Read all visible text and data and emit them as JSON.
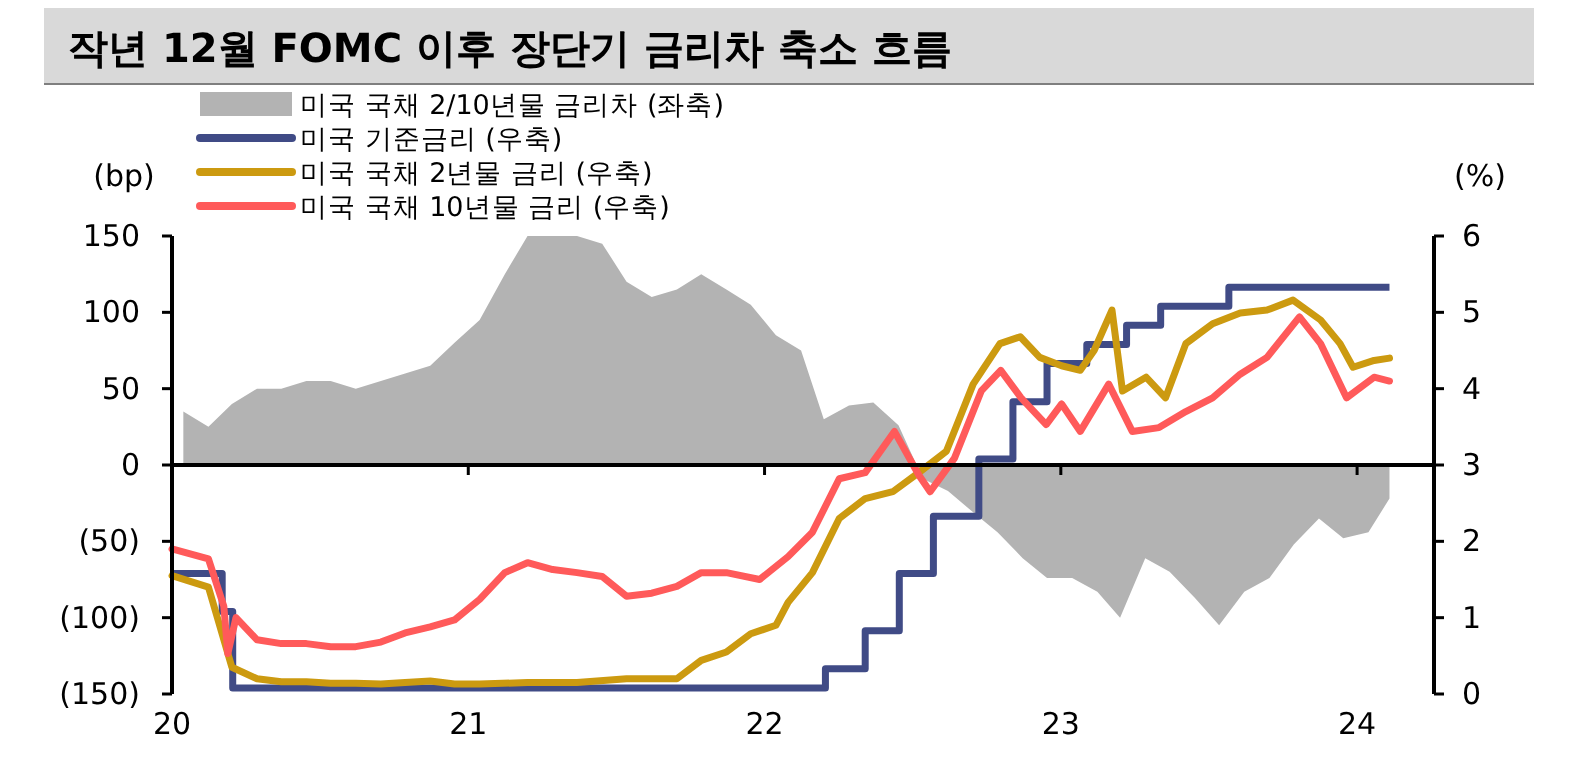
{
  "chart_data": {
    "type": "line",
    "title": "작년 12월 FOMC 이후 장단기 금리차 축소 흐름",
    "ylabel": "(bp)",
    "y2label": "(%)",
    "legend": "top left",
    "xlim": [
      "2020-01-01",
      "2024-04-05"
    ],
    "xticks": [
      {
        "value": "2020-01-01",
        "label": "20"
      },
      {
        "value": "2021-01-01",
        "label": "21"
      },
      {
        "value": "2022-01-01",
        "label": "22"
      },
      {
        "value": "2023-01-01",
        "label": "23"
      },
      {
        "value": "2024-01-01",
        "label": "24"
      }
    ],
    "ylim": [
      -150,
      150
    ],
    "yticks": [
      {
        "value": -150,
        "label": "(150)"
      },
      {
        "value": -100,
        "label": "(100)"
      },
      {
        "value": -50,
        "label": "(50)"
      },
      0,
      50,
      100,
      150
    ],
    "y2lim": [
      0,
      6
    ],
    "y2ticks": [
      0,
      1,
      2,
      3,
      4,
      5,
      6
    ],
    "series": [
      {
        "name": "미국 국채 2/10년물 금리차 (좌축)",
        "type": "area",
        "color": "#b3b3b3",
        "x": [
          "2020-01-15",
          "2020-02-15",
          "2020-03-15",
          "2020-04-15",
          "2020-05-15",
          "2020-06-15",
          "2020-07-15",
          "2020-08-15",
          "2020-09-15",
          "2020-10-15",
          "2020-11-15",
          "2020-12-15",
          "2021-01-15",
          "2021-02-15",
          "2021-03-15",
          "2021-04-15",
          "2021-05-15",
          "2021-06-15",
          "2021-07-15",
          "2021-08-15",
          "2021-09-15",
          "2021-10-15",
          "2021-11-15",
          "2021-12-15",
          "2022-01-15",
          "2022-02-15",
          "2022-03-15",
          "2022-04-15",
          "2022-05-15",
          "2022-06-15",
          "2022-07-15",
          "2022-08-15",
          "2022-09-15",
          "2022-10-15",
          "2022-11-15",
          "2022-12-15",
          "2023-01-15",
          "2023-02-15",
          "2023-03-15",
          "2023-04-15",
          "2023-05-15",
          "2023-06-15",
          "2023-07-15",
          "2023-08-15",
          "2023-09-15",
          "2023-10-15",
          "2023-11-15",
          "2023-12-15",
          "2024-01-15",
          "2024-02-10"
        ],
        "values": [
          35,
          25,
          40,
          50,
          50,
          55,
          55,
          50,
          55,
          60,
          65,
          80,
          95,
          125,
          150,
          150,
          150,
          145,
          120,
          110,
          115,
          125,
          115,
          105,
          85,
          75,
          30,
          39,
          41,
          26,
          -9,
          -17,
          -31,
          -44,
          -61,
          -74,
          -74,
          -83,
          -100,
          -61,
          -70,
          -87,
          -105,
          -83,
          -74,
          -52,
          -35,
          -48,
          -44,
          -22
        ]
      },
      {
        "name": "미국 기준금리 (우축)",
        "type": "step",
        "axis": "y2",
        "color": "#404b86",
        "x": [
          "2020-01-01",
          "2020-03-03",
          "2020-03-16",
          "2022-03-17",
          "2022-05-05",
          "2022-06-16",
          "2022-07-28",
          "2022-09-22",
          "2022-11-03",
          "2022-12-15",
          "2023-02-02",
          "2023-03-23",
          "2023-05-04",
          "2023-07-27",
          "2024-02-10"
        ],
        "values": [
          1.58,
          1.08,
          0.08,
          0.33,
          0.83,
          1.58,
          2.33,
          3.08,
          3.83,
          4.33,
          4.58,
          4.83,
          5.08,
          5.33,
          5.33
        ]
      },
      {
        "name": "미국 국채 2년물 금리 (우축)",
        "axis": "y2",
        "color": "#cc9a10",
        "x": [
          "2020-01-01",
          "2020-02-15",
          "2020-03-15",
          "2020-04-15",
          "2020-05-15",
          "2020-06-15",
          "2020-07-15",
          "2020-08-15",
          "2020-09-15",
          "2020-10-15",
          "2020-11-15",
          "2020-12-15",
          "2021-01-15",
          "2021-03-15",
          "2021-05-15",
          "2021-07-15",
          "2021-09-15",
          "2021-10-15",
          "2021-11-15",
          "2021-12-15",
          "2022-01-15",
          "2022-01-30",
          "2022-03-01",
          "2022-04-03",
          "2022-05-05",
          "2022-06-08",
          "2022-07-10",
          "2022-08-13",
          "2022-09-15",
          "2022-10-18",
          "2022-11-12",
          "2022-12-06",
          "2023-01-02",
          "2023-01-25",
          "2023-02-11",
          "2023-03-05",
          "2023-03-18",
          "2023-04-16",
          "2023-05-10",
          "2023-06-04",
          "2023-07-07",
          "2023-08-10",
          "2023-09-12",
          "2023-10-14",
          "2023-11-17",
          "2023-12-11",
          "2023-12-27",
          "2024-01-22",
          "2024-02-10"
        ],
        "values": [
          1.55,
          1.4,
          0.35,
          0.2,
          0.16,
          0.16,
          0.14,
          0.14,
          0.13,
          0.15,
          0.17,
          0.13,
          0.13,
          0.15,
          0.15,
          0.2,
          0.2,
          0.44,
          0.55,
          0.79,
          0.9,
          1.2,
          1.59,
          2.3,
          2.56,
          2.65,
          2.9,
          3.18,
          4.06,
          4.59,
          4.68,
          4.41,
          4.3,
          4.24,
          4.5,
          5.03,
          3.97,
          4.15,
          3.88,
          4.59,
          4.85,
          4.99,
          5.03,
          5.16,
          4.9,
          4.59,
          4.28,
          4.37,
          4.4
        ]
      },
      {
        "name": "미국 국채 10년물 금리 (우축)",
        "axis": "y2",
        "color": "#ff5a5a",
        "x": [
          "2020-01-01",
          "2020-02-15",
          "2020-03-05",
          "2020-03-10",
          "2020-03-20",
          "2020-04-15",
          "2020-05-15",
          "2020-06-15",
          "2020-07-15",
          "2020-08-15",
          "2020-09-15",
          "2020-10-15",
          "2020-11-15",
          "2020-12-15",
          "2021-01-15",
          "2021-02-15",
          "2021-03-15",
          "2021-04-15",
          "2021-05-15",
          "2021-06-15",
          "2021-07-15",
          "2021-08-15",
          "2021-09-15",
          "2021-10-15",
          "2021-11-15",
          "2021-12-26",
          "2022-01-30",
          "2022-03-01",
          "2022-04-03",
          "2022-05-05",
          "2022-06-10",
          "2022-07-10",
          "2022-07-24",
          "2022-08-23",
          "2022-09-25",
          "2022-10-19",
          "2022-11-13",
          "2022-12-14",
          "2023-01-02",
          "2023-01-25",
          "2023-03-01",
          "2023-03-30",
          "2023-05-02",
          "2023-06-04",
          "2023-07-07",
          "2023-08-10",
          "2023-09-12",
          "2023-10-22",
          "2023-11-17",
          "2023-12-19",
          "2024-01-22",
          "2024-02-10"
        ],
        "values": [
          1.9,
          1.77,
          1.15,
          0.53,
          1.0,
          0.71,
          0.66,
          0.66,
          0.62,
          0.62,
          0.68,
          0.8,
          0.88,
          0.97,
          1.24,
          1.59,
          1.72,
          1.63,
          1.59,
          1.54,
          1.28,
          1.32,
          1.41,
          1.59,
          1.59,
          1.5,
          1.8,
          2.12,
          2.82,
          2.9,
          3.44,
          2.87,
          2.65,
          3.09,
          3.97,
          4.24,
          3.88,
          3.53,
          3.8,
          3.44,
          4.06,
          3.44,
          3.49,
          3.7,
          3.88,
          4.19,
          4.41,
          4.94,
          4.59,
          3.88,
          4.15,
          4.1
        ]
      }
    ]
  }
}
